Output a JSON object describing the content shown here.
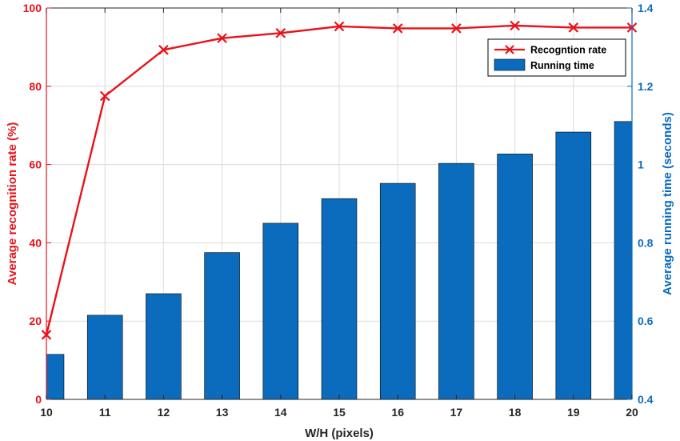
{
  "chart_data": {
    "type": "bar+line",
    "x_label": "W/H (pixels)",
    "x": [
      10,
      11,
      12,
      13,
      14,
      15,
      16,
      17,
      18,
      19,
      20
    ],
    "xlim": [
      10,
      20
    ],
    "series": [
      {
        "name": "Recogntion rate",
        "type": "line",
        "axis": "left",
        "color": "#e8121a",
        "marker": "x",
        "values": [
          16.5,
          77.5,
          89.3,
          92.3,
          93.6,
          95.3,
          94.8,
          94.8,
          95.5,
          95.0,
          95.0
        ]
      },
      {
        "name": "Running time",
        "type": "bar",
        "axis": "right",
        "color": "#0b6cbd",
        "values": [
          0.515,
          0.615,
          0.67,
          0.775,
          0.85,
          0.913,
          0.952,
          1.003,
          1.027,
          1.083,
          1.11
        ]
      }
    ],
    "y_left": {
      "label": "Average recognition rate (%)",
      "range": [
        0,
        100
      ],
      "ticks": [
        0,
        20,
        40,
        60,
        80,
        100
      ],
      "color": "#e8121a"
    },
    "y_right": {
      "label": "Average running time (seconds)",
      "range": [
        0.4,
        1.4
      ],
      "ticks": [
        0.4,
        0.6,
        0.8,
        1,
        1.2,
        1.4
      ],
      "tick_labels": [
        "0.4",
        "0.6",
        "0.8",
        "1",
        "1.2",
        "1.4"
      ],
      "color": "#0b6cbd"
    },
    "grid": true,
    "legend": {
      "position": "top-right"
    }
  }
}
